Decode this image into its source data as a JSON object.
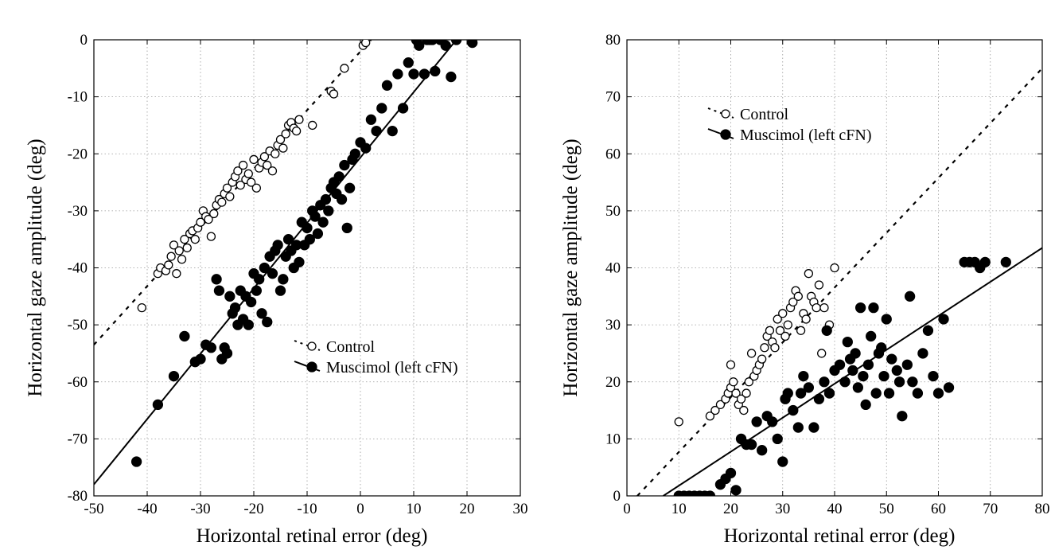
{
  "chart_data": [
    {
      "type": "scatter",
      "xlabel": "Horizontal retinal error (deg)",
      "ylabel": "Horizontal gaze amplitude (deg)",
      "xlim": [
        -50,
        30
      ],
      "ylim": [
        -80,
        0
      ],
      "xticks": [
        "-50",
        "-40",
        "-30",
        "-20",
        "-10",
        "0",
        "10",
        "20",
        "30"
      ],
      "yticks": [
        "0",
        "-10",
        "-20",
        "-30",
        "-40",
        "-50",
        "-60",
        "-70",
        "-80"
      ],
      "grid": true,
      "legend_position": "center-right",
      "series": [
        {
          "name": "Control",
          "marker": "open-circle",
          "line_style": "dotted",
          "fit_line": {
            "x": [
              -50,
              2
            ],
            "y": [
              -53.5,
              0
            ]
          },
          "points": [
            [
              -41,
              -47
            ],
            [
              -38,
              -41
            ],
            [
              -37.5,
              -40
            ],
            [
              -36.5,
              -40.5
            ],
            [
              -36,
              -39.5
            ],
            [
              -35.5,
              -38
            ],
            [
              -35,
              -36
            ],
            [
              -34.5,
              -41
            ],
            [
              -34,
              -37
            ],
            [
              -33.5,
              -38.5
            ],
            [
              -33,
              -35
            ],
            [
              -32.5,
              -36.5
            ],
            [
              -32,
              -34
            ],
            [
              -31.5,
              -33.5
            ],
            [
              -31,
              -35
            ],
            [
              -30.5,
              -33
            ],
            [
              -30,
              -32
            ],
            [
              -29.5,
              -30
            ],
            [
              -29,
              -31
            ],
            [
              -28.5,
              -31.5
            ],
            [
              -28,
              -34.5
            ],
            [
              -27.5,
              -30.5
            ],
            [
              -27,
              -29
            ],
            [
              -26.5,
              -28
            ],
            [
              -26,
              -28.5
            ],
            [
              -25.5,
              -27
            ],
            [
              -25,
              -26
            ],
            [
              -24.5,
              -27.5
            ],
            [
              -24,
              -25
            ],
            [
              -23.5,
              -24
            ],
            [
              -23,
              -23
            ],
            [
              -22.5,
              -25.5
            ],
            [
              -22,
              -22
            ],
            [
              -21.5,
              -24.5
            ],
            [
              -21,
              -23.5
            ],
            [
              -20.5,
              -25
            ],
            [
              -20,
              -21
            ],
            [
              -19.5,
              -26
            ],
            [
              -19,
              -22.5
            ],
            [
              -18.5,
              -21.5
            ],
            [
              -18,
              -20.5
            ],
            [
              -17.5,
              -22
            ],
            [
              -17,
              -19.5
            ],
            [
              -16.5,
              -23
            ],
            [
              -16,
              -20
            ],
            [
              -15.5,
              -18.5
            ],
            [
              -15,
              -17.5
            ],
            [
              -14.5,
              -19
            ],
            [
              -14,
              -16.5
            ],
            [
              -13.5,
              -15
            ],
            [
              -13,
              -14.5
            ],
            [
              -12.5,
              -15.5
            ],
            [
              -12,
              -16
            ],
            [
              -11.5,
              -14
            ],
            [
              -9,
              -15
            ],
            [
              -5.5,
              -9
            ],
            [
              -5,
              -9.5
            ],
            [
              -3,
              -5
            ],
            [
              0.5,
              -1
            ],
            [
              1,
              -0.5
            ]
          ]
        },
        {
          "name": "Muscimol (left cFN)",
          "marker": "filled-circle",
          "line_style": "solid",
          "fit_line": {
            "x": [
              -50,
              18
            ],
            "y": [
              -78,
              0
            ]
          },
          "points": [
            [
              -42,
              -74
            ],
            [
              -38,
              -64
            ],
            [
              -35,
              -59
            ],
            [
              -33,
              -52
            ],
            [
              -31,
              -56.5
            ],
            [
              -30,
              -56
            ],
            [
              -29,
              -53.5
            ],
            [
              -28,
              -54
            ],
            [
              -27,
              -42
            ],
            [
              -26.5,
              -44
            ],
            [
              -26,
              -56
            ],
            [
              -25.5,
              -54
            ],
            [
              -25,
              -55
            ],
            [
              -24.5,
              -45
            ],
            [
              -24,
              -48
            ],
            [
              -23.5,
              -47
            ],
            [
              -23,
              -50
            ],
            [
              -22.5,
              -44
            ],
            [
              -22,
              -49
            ],
            [
              -21.5,
              -45
            ],
            [
              -21,
              -50
            ],
            [
              -20.5,
              -46
            ],
            [
              -20,
              -41
            ],
            [
              -19.5,
              -44
            ],
            [
              -19,
              -42
            ],
            [
              -18.5,
              -48
            ],
            [
              -18,
              -40
            ],
            [
              -17.5,
              -49.5
            ],
            [
              -17,
              -38
            ],
            [
              -16.5,
              -41
            ],
            [
              -16,
              -37
            ],
            [
              -15.5,
              -36
            ],
            [
              -15,
              -44
            ],
            [
              -14.5,
              -42
            ],
            [
              -14,
              -38
            ],
            [
              -13.5,
              -35
            ],
            [
              -13,
              -37
            ],
            [
              -12.5,
              -40
            ],
            [
              -12,
              -36
            ],
            [
              -11.5,
              -39
            ],
            [
              -11,
              -32
            ],
            [
              -10.5,
              -36
            ],
            [
              -10,
              -33
            ],
            [
              -9.5,
              -35
            ],
            [
              -9,
              -30
            ],
            [
              -8.5,
              -31
            ],
            [
              -8,
              -34
            ],
            [
              -7.5,
              -29
            ],
            [
              -7,
              -32
            ],
            [
              -6.5,
              -28
            ],
            [
              -6,
              -30
            ],
            [
              -5.5,
              -26
            ],
            [
              -5,
              -25
            ],
            [
              -4.5,
              -27
            ],
            [
              -4,
              -24
            ],
            [
              -3.5,
              -28
            ],
            [
              -3,
              -22
            ],
            [
              -2.5,
              -33
            ],
            [
              -2,
              -26
            ],
            [
              -1.5,
              -21
            ],
            [
              -1,
              -20
            ],
            [
              0,
              -18
            ],
            [
              1,
              -19
            ],
            [
              2,
              -14
            ],
            [
              3,
              -16
            ],
            [
              4,
              -12
            ],
            [
              5,
              -8
            ],
            [
              6,
              -16
            ],
            [
              7,
              -6
            ],
            [
              8,
              -12
            ],
            [
              9,
              -4
            ],
            [
              10,
              -6
            ],
            [
              10.5,
              0
            ],
            [
              11,
              -1
            ],
            [
              12,
              -6
            ],
            [
              12.5,
              0
            ],
            [
              13,
              0
            ],
            [
              13.5,
              0
            ],
            [
              14,
              -5.5
            ],
            [
              15,
              0
            ],
            [
              16,
              -1
            ],
            [
              17,
              -6.5
            ],
            [
              18,
              0
            ],
            [
              21,
              -0.5
            ]
          ]
        }
      ]
    },
    {
      "type": "scatter",
      "xlabel": "Horizontal retinal error (deg)",
      "ylabel": "Horizontal gaze amplitude (deg)",
      "xlim": [
        0,
        80
      ],
      "ylim": [
        0,
        80
      ],
      "xticks": [
        "0",
        "10",
        "20",
        "30",
        "40",
        "50",
        "60",
        "70",
        "80"
      ],
      "yticks": [
        "0",
        "10",
        "20",
        "30",
        "40",
        "50",
        "60",
        "70",
        "80"
      ],
      "grid": true,
      "legend_position": "top-left",
      "series": [
        {
          "name": "Control",
          "marker": "open-circle",
          "line_style": "dotted",
          "fit_line": {
            "x": [
              2,
              80
            ],
            "y": [
              0,
              75
            ]
          },
          "points": [
            [
              10,
              13
            ],
            [
              16,
              14
            ],
            [
              17,
              15
            ],
            [
              18,
              16
            ],
            [
              19,
              17
            ],
            [
              19.5,
              18
            ],
            [
              20,
              19
            ],
            [
              20,
              23
            ],
            [
              20.5,
              20
            ],
            [
              21,
              18
            ],
            [
              21.5,
              16
            ],
            [
              22,
              17
            ],
            [
              22.5,
              15
            ],
            [
              23,
              18
            ],
            [
              23.5,
              20
            ],
            [
              24,
              25
            ],
            [
              24.5,
              21
            ],
            [
              25,
              22
            ],
            [
              25.5,
              23
            ],
            [
              26,
              24
            ],
            [
              26.5,
              26
            ],
            [
              27,
              28
            ],
            [
              27.5,
              29
            ],
            [
              28,
              27
            ],
            [
              28.5,
              26
            ],
            [
              29,
              31
            ],
            [
              29.5,
              29
            ],
            [
              30,
              32
            ],
            [
              30.5,
              28
            ],
            [
              31,
              30
            ],
            [
              31.5,
              33
            ],
            [
              32,
              34
            ],
            [
              32.5,
              36
            ],
            [
              33,
              35
            ],
            [
              33.5,
              29
            ],
            [
              34,
              32
            ],
            [
              34.5,
              31
            ],
            [
              35,
              39
            ],
            [
              35.5,
              35
            ],
            [
              36,
              34
            ],
            [
              36.5,
              33
            ],
            [
              37,
              37
            ],
            [
              37.5,
              25
            ],
            [
              38,
              33
            ],
            [
              39,
              30
            ],
            [
              40,
              40
            ]
          ]
        },
        {
          "name": "Muscimol (left cFN)",
          "marker": "filled-circle",
          "line_style": "solid",
          "fit_line": {
            "x": [
              7,
              80
            ],
            "y": [
              0,
              43.5
            ]
          },
          "points": [
            [
              10,
              0
            ],
            [
              11,
              0
            ],
            [
              12,
              0
            ],
            [
              13,
              0
            ],
            [
              14,
              0
            ],
            [
              15,
              0
            ],
            [
              16,
              0
            ],
            [
              18,
              2
            ],
            [
              19,
              3
            ],
            [
              20,
              4
            ],
            [
              21,
              1
            ],
            [
              22,
              10
            ],
            [
              23,
              9
            ],
            [
              24,
              9
            ],
            [
              25,
              13
            ],
            [
              26,
              8
            ],
            [
              27,
              14
            ],
            [
              28,
              13
            ],
            [
              29,
              10
            ],
            [
              30,
              6
            ],
            [
              30.5,
              17
            ],
            [
              31,
              18
            ],
            [
              32,
              15
            ],
            [
              33,
              12
            ],
            [
              33.5,
              18
            ],
            [
              34,
              21
            ],
            [
              35,
              19
            ],
            [
              36,
              12
            ],
            [
              37,
              17
            ],
            [
              38,
              20
            ],
            [
              38.5,
              29
            ],
            [
              39,
              18
            ],
            [
              40,
              22
            ],
            [
              41,
              23
            ],
            [
              42,
              20
            ],
            [
              42.5,
              27
            ],
            [
              43,
              24
            ],
            [
              43.5,
              22
            ],
            [
              44,
              25
            ],
            [
              44.5,
              19
            ],
            [
              45,
              33
            ],
            [
              45.5,
              21
            ],
            [
              46,
              16
            ],
            [
              46.5,
              23
            ],
            [
              47,
              28
            ],
            [
              47.5,
              33
            ],
            [
              48,
              18
            ],
            [
              48.5,
              25
            ],
            [
              49,
              26
            ],
            [
              49.5,
              21
            ],
            [
              50,
              31
            ],
            [
              50.5,
              18
            ],
            [
              51,
              24
            ],
            [
              52,
              22
            ],
            [
              52.5,
              20
            ],
            [
              53,
              14
            ],
            [
              54,
              23
            ],
            [
              54.5,
              35
            ],
            [
              55,
              20
            ],
            [
              56,
              18
            ],
            [
              57,
              25
            ],
            [
              58,
              29
            ],
            [
              59,
              21
            ],
            [
              60,
              18
            ],
            [
              61,
              31
            ],
            [
              62,
              19
            ],
            [
              65,
              41
            ],
            [
              66,
              41
            ],
            [
              67,
              41
            ],
            [
              68,
              40
            ],
            [
              69,
              41
            ],
            [
              73,
              41
            ]
          ]
        }
      ]
    }
  ]
}
